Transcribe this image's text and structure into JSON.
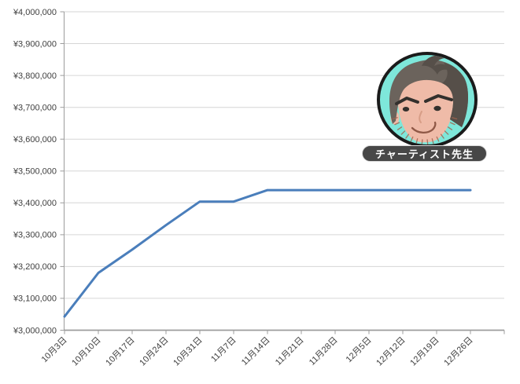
{
  "chart_data": {
    "type": "line",
    "title": "",
    "xlabel": "",
    "ylabel": "",
    "categories": [
      "10月3日",
      "10月10日",
      "10月17日",
      "10月24日",
      "10月31日",
      "11月7日",
      "11月14日",
      "11月21日",
      "11月28日",
      "12月5日",
      "12月12日",
      "12月19日",
      "12月26日"
    ],
    "values": [
      3043000,
      3180000,
      3253000,
      3330000,
      3404000,
      3404000,
      3440000,
      3440000,
      3440000,
      3440000,
      3440000,
      3440000,
      3440000
    ],
    "ylim": [
      3000000,
      4000000
    ],
    "y_tick_step": 100000,
    "y_tick_labels": [
      "¥4,000,000",
      "¥3,900,000",
      "¥3,800,000",
      "¥3,700,000",
      "¥3,600,000",
      "¥3,500,000",
      "¥3,400,000",
      "¥3,300,000",
      "¥3,200,000",
      "¥3,100,000",
      "¥3,000,000"
    ],
    "grid": true,
    "legend": false,
    "x_labels_rotation_degrees": 45,
    "colors": {
      "line": "#4a7ebb",
      "gridline": "#d6d6d6",
      "axis": "#9c9c9c",
      "tick_label": "#3f3f3f"
    }
  },
  "avatar": {
    "label": "チャーティスト先生",
    "colors": {
      "circle_bg": "#7ee7da",
      "circle_border": "#1b1b1b",
      "skin": "#efbba8",
      "hair": "#6b635c",
      "hair_dark": "#564f49",
      "brow": "#33302d",
      "eye": "#33302d",
      "nose": "#d79d86",
      "mouth": "#8f5846",
      "stubble": "#a2644f",
      "label_bg": "#474747",
      "label_text": "#ffffff",
      "label_border": "#d9d9d9"
    }
  }
}
